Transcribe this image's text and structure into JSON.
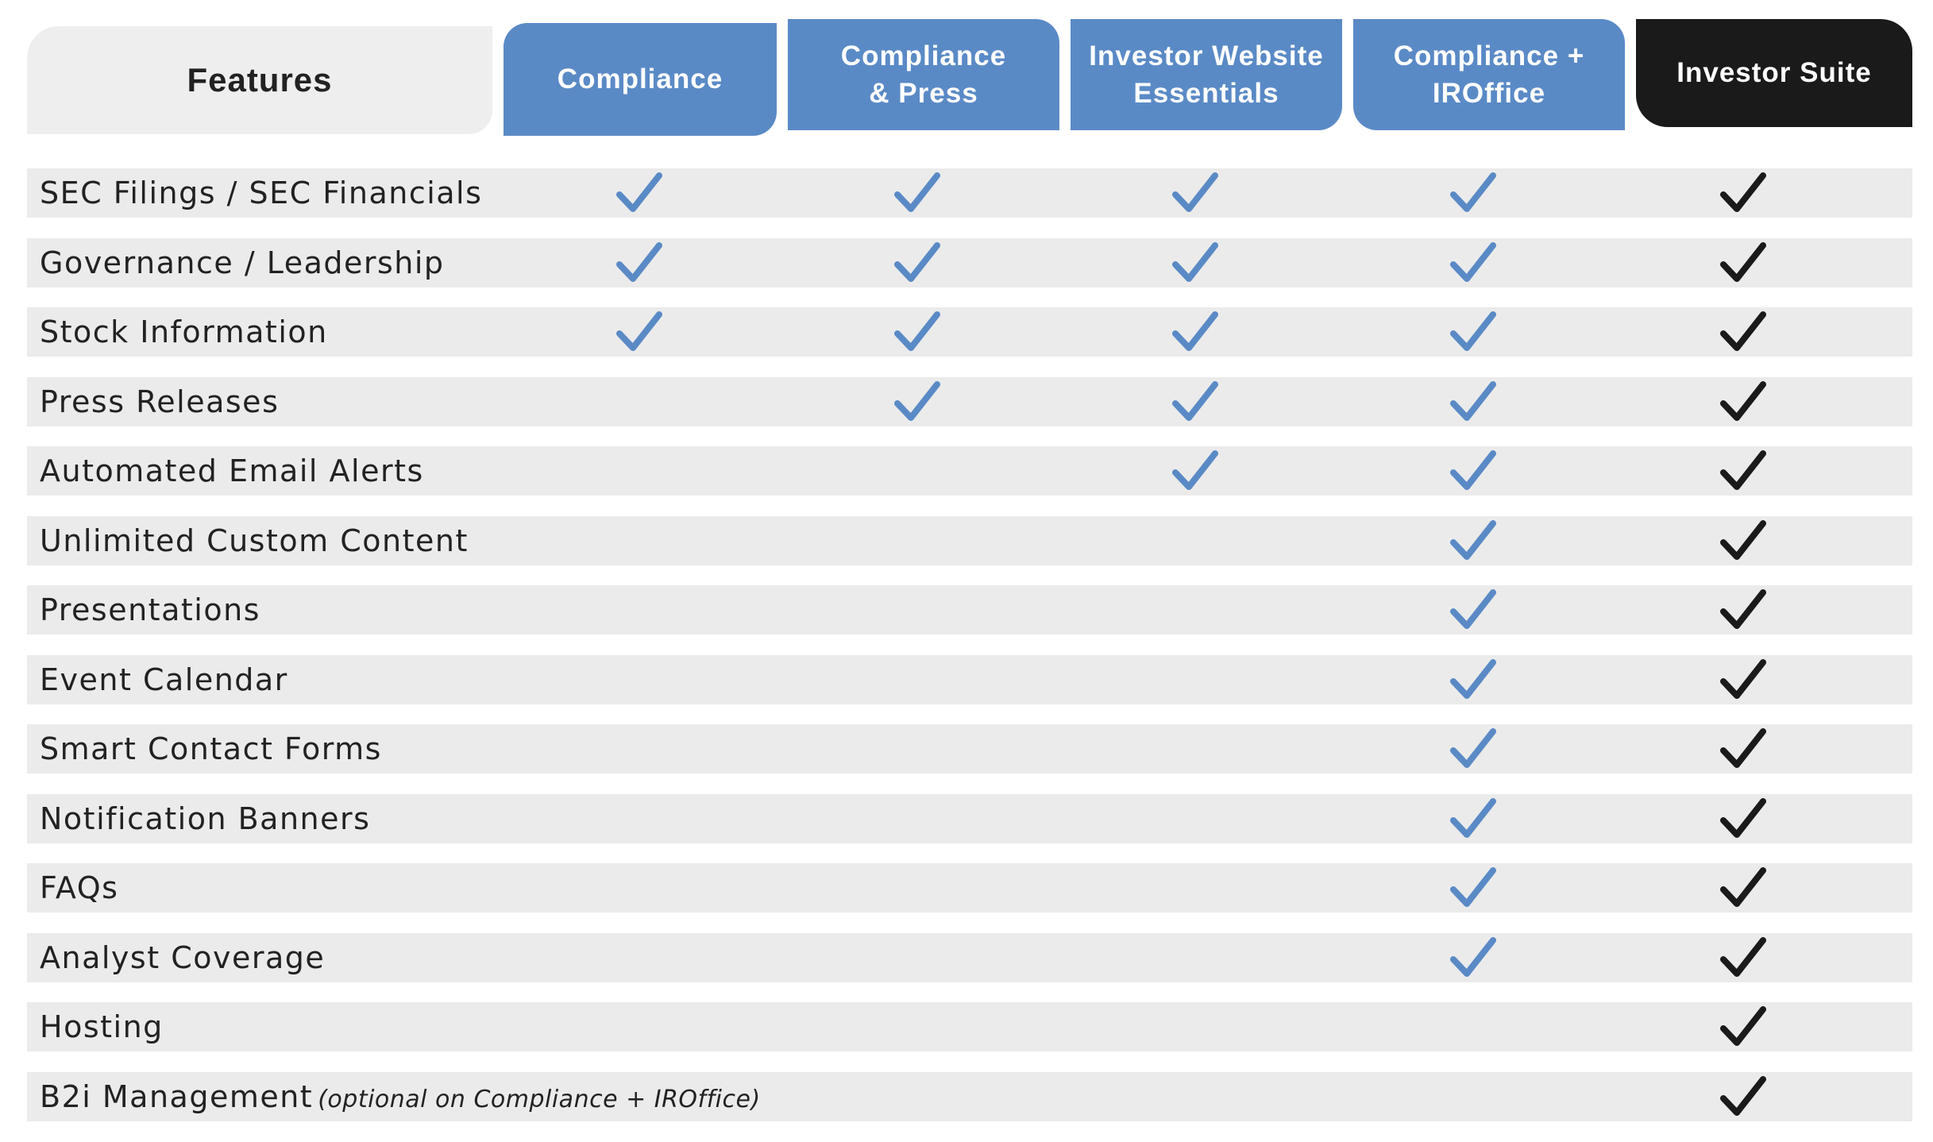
{
  "header": {
    "features_label": "Features",
    "plans": [
      {
        "line1": "Compliance",
        "line2": "",
        "style": "blue"
      },
      {
        "line1": "Compliance",
        "line2": "& Press",
        "style": "blue"
      },
      {
        "line1": "Investor Website",
        "line2": "Essentials",
        "style": "blue"
      },
      {
        "line1": "Compliance +",
        "line2": "IROffice",
        "style": "blue"
      },
      {
        "line1": "Investor Suite",
        "line2": "",
        "style": "black"
      }
    ]
  },
  "colors": {
    "plan_blue": "#5a8ac6",
    "suite_black": "#1a1a1a",
    "check_blue": "#5a8ac6",
    "check_black": "#1a1a1a",
    "row_gray": "#ebebeb"
  },
  "icons": {
    "included": "checkmark-icon"
  },
  "features": [
    {
      "label": "SEC Filings / SEC Financials",
      "note": "",
      "included": [
        true,
        true,
        true,
        true,
        true
      ]
    },
    {
      "label": "Governance / Leadership",
      "note": "",
      "included": [
        true,
        true,
        true,
        true,
        true
      ]
    },
    {
      "label": "Stock Information",
      "note": "",
      "included": [
        true,
        true,
        true,
        true,
        true
      ]
    },
    {
      "label": "Press Releases",
      "note": "",
      "included": [
        false,
        true,
        true,
        true,
        true
      ]
    },
    {
      "label": "Automated Email Alerts",
      "note": "",
      "included": [
        false,
        false,
        true,
        true,
        true
      ]
    },
    {
      "label": "Unlimited Custom Content",
      "note": "",
      "included": [
        false,
        false,
        false,
        true,
        true
      ]
    },
    {
      "label": "Presentations",
      "note": "",
      "included": [
        false,
        false,
        false,
        true,
        true
      ]
    },
    {
      "label": "Event Calendar",
      "note": "",
      "included": [
        false,
        false,
        false,
        true,
        true
      ]
    },
    {
      "label": "Smart Contact Forms",
      "note": "",
      "included": [
        false,
        false,
        false,
        true,
        true
      ]
    },
    {
      "label": "Notification Banners",
      "note": "",
      "included": [
        false,
        false,
        false,
        true,
        true
      ]
    },
    {
      "label": "FAQs",
      "note": "",
      "included": [
        false,
        false,
        false,
        true,
        true
      ]
    },
    {
      "label": "Analyst Coverage",
      "note": "",
      "included": [
        false,
        false,
        false,
        true,
        true
      ]
    },
    {
      "label": "Hosting",
      "note": "",
      "included": [
        false,
        false,
        false,
        false,
        true
      ]
    },
    {
      "label": "B2i Management",
      "note": "(optional on Compliance + IROffice)",
      "included": [
        false,
        false,
        false,
        false,
        true
      ]
    }
  ]
}
